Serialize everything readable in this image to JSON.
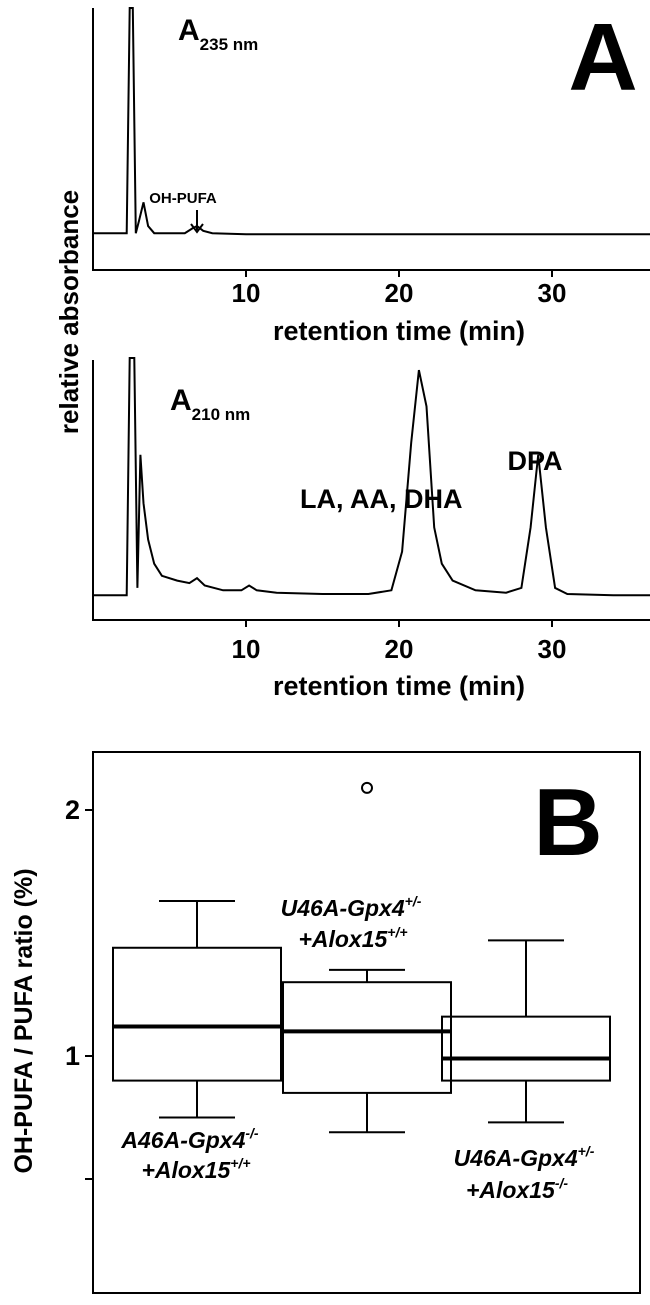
{
  "panel_a_letter": "A",
  "panel_b_letter": "B",
  "shared_ylabel": "relative absorbance",
  "chart_data": [
    {
      "type": "line",
      "label_main": "A",
      "label_sub": "235 nm",
      "xlabel": "retention time (min)",
      "xticks": [
        10,
        20,
        30
      ],
      "xlim": [
        0,
        37
      ],
      "annotation": {
        "text": "OH-PUFA",
        "x": 6.8
      },
      "series": [
        {
          "points": [
            [
              0,
              0.05
            ],
            [
              2.2,
              0.05
            ],
            [
              2.4,
              1.0
            ],
            [
              2.6,
              1.0
            ],
            [
              2.8,
              0.05
            ],
            [
              3.0,
              0.1
            ],
            [
              3.3,
              0.18
            ],
            [
              3.6,
              0.08
            ],
            [
              4.0,
              0.05
            ],
            [
              6,
              0.05
            ],
            [
              6.5,
              0.07
            ],
            [
              6.8,
              0.08
            ],
            [
              7.2,
              0.06
            ],
            [
              7.8,
              0.05
            ],
            [
              10,
              0.045
            ],
            [
              15,
              0.045
            ],
            [
              20,
              0.045
            ],
            [
              25,
              0.045
            ],
            [
              30,
              0.045
            ],
            [
              37,
              0.045
            ]
          ]
        }
      ]
    },
    {
      "type": "line",
      "label_main": "A",
      "label_sub": "210 nm",
      "xlabel": "retention time (min)",
      "xticks": [
        10,
        20,
        30
      ],
      "xlim": [
        0,
        37
      ],
      "peak_labels": [
        {
          "text": "LA, AA, DHA",
          "x": 21.3
        },
        {
          "text": "DPA",
          "x": 29.1
        }
      ],
      "series": [
        {
          "points": [
            [
              0,
              0.02
            ],
            [
              2.2,
              0.02
            ],
            [
              2.4,
              1.0
            ],
            [
              2.7,
              1.0
            ],
            [
              2.9,
              0.05
            ],
            [
              3.1,
              0.6
            ],
            [
              3.3,
              0.4
            ],
            [
              3.6,
              0.25
            ],
            [
              4.0,
              0.15
            ],
            [
              4.5,
              0.1
            ],
            [
              5.5,
              0.08
            ],
            [
              6.3,
              0.07
            ],
            [
              6.8,
              0.09
            ],
            [
              7.3,
              0.06
            ],
            [
              8.5,
              0.04
            ],
            [
              9.7,
              0.04
            ],
            [
              10.2,
              0.06
            ],
            [
              10.7,
              0.04
            ],
            [
              12,
              0.03
            ],
            [
              15,
              0.025
            ],
            [
              18,
              0.025
            ],
            [
              19.5,
              0.04
            ],
            [
              20.2,
              0.2
            ],
            [
              20.8,
              0.65
            ],
            [
              21.3,
              0.95
            ],
            [
              21.8,
              0.8
            ],
            [
              22.3,
              0.3
            ],
            [
              22.8,
              0.15
            ],
            [
              23.5,
              0.08
            ],
            [
              25,
              0.04
            ],
            [
              27,
              0.03
            ],
            [
              28,
              0.05
            ],
            [
              28.6,
              0.3
            ],
            [
              29.1,
              0.6
            ],
            [
              29.6,
              0.3
            ],
            [
              30.2,
              0.05
            ],
            [
              31,
              0.025
            ],
            [
              34,
              0.02
            ],
            [
              37,
              0.02
            ]
          ]
        }
      ]
    },
    {
      "type": "box",
      "ylabel": "OH-PUFA / PUFA ratio (%)",
      "yticks": [
        1,
        2
      ],
      "ylim": [
        0.3,
        2.3
      ],
      "groups": [
        {
          "label_line1": "A46A-Gpx4",
          "sup1": "-/-",
          "label_line2": "+Alox15",
          "sup2": "+/+",
          "whisker_low": 0.75,
          "q1": 0.9,
          "median": 1.12,
          "q3": 1.44,
          "whisker_high": 1.63
        },
        {
          "label_line1": "U46A-Gpx4",
          "sup1": "+/-",
          "label_line2": "+Alox15",
          "sup2": "+/+",
          "whisker_low": 0.69,
          "q1": 0.85,
          "median": 1.1,
          "q3": 1.3,
          "whisker_high": 1.35,
          "outliers": [
            2.09
          ]
        },
        {
          "label_line1": "U46A-Gpx4",
          "sup1": "+/-",
          "label_line2": "+Alox15",
          "sup2": "-/-",
          "whisker_low": 0.73,
          "q1": 0.9,
          "median": 0.99,
          "q3": 1.16,
          "whisker_high": 1.47
        }
      ]
    }
  ]
}
